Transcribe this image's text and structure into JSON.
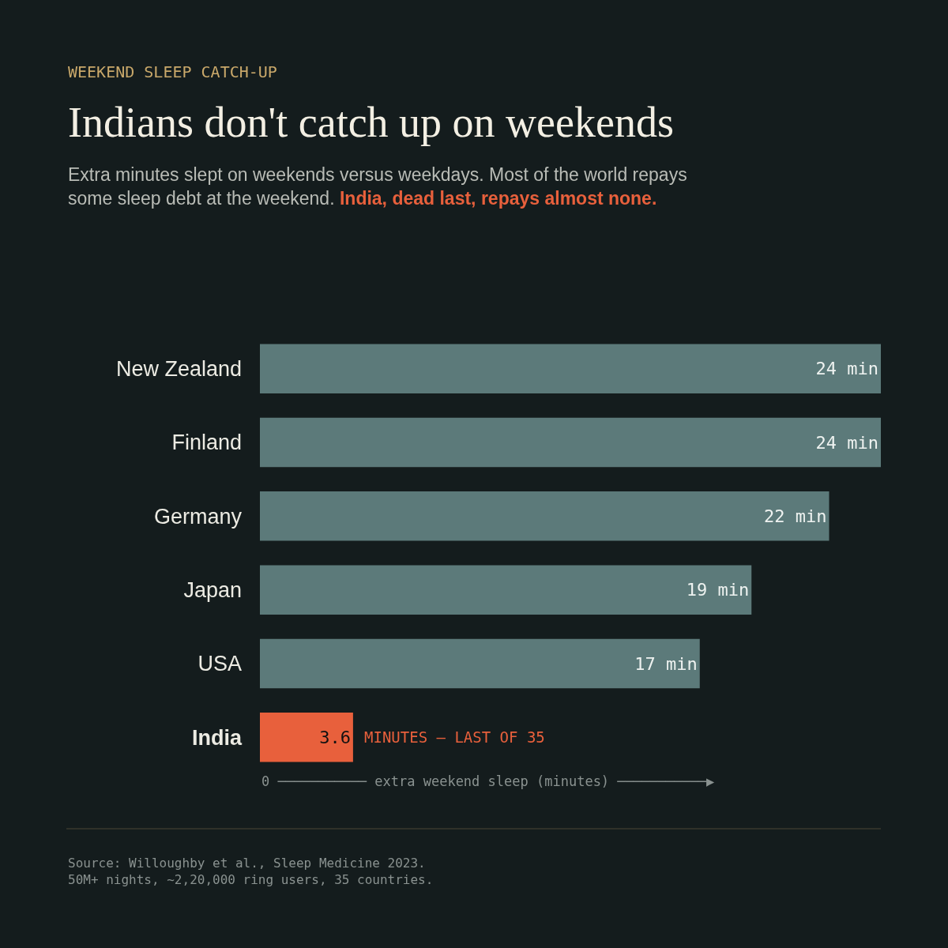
{
  "chart_data": {
    "type": "bar",
    "orientation": "horizontal",
    "title": "Indians don't catch up on weekends",
    "subtitle": "Extra minutes slept on weekends versus weekdays. Most of the world repays some sleep debt at the weekend.",
    "categories": [
      "New Zealand",
      "Finland",
      "Germany",
      "Japan",
      "USA",
      "India"
    ],
    "values": [
      24,
      24,
      22,
      19,
      17,
      3.6
    ],
    "value_labels": [
      "24 min",
      "24 min",
      "22 min",
      "19 min",
      "17 min",
      "3.6"
    ],
    "colors": [
      "#5c7a7a",
      "#5c7a7a",
      "#5c7a7a",
      "#5c7a7a",
      "#5c7a7a",
      "#e8603c"
    ],
    "xlabel": "0 ─────────── extra weekend sleep (minutes) ───────────▶",
    "xlim": [
      0,
      24
    ],
    "grid": false,
    "legend": false,
    "annotations": [
      "WEEKEND SLEEP CATCH-UP",
      "India, dead last, repays almost none.",
      {
        "text": "MINUTES — LAST OF 35",
        "x": 3.6,
        "y": "India"
      },
      "Source: Willoughby et al., Sleep Medicine 2023.",
      "50M+ nights, ~2,20,000 ring users, 35 countries."
    ]
  }
}
